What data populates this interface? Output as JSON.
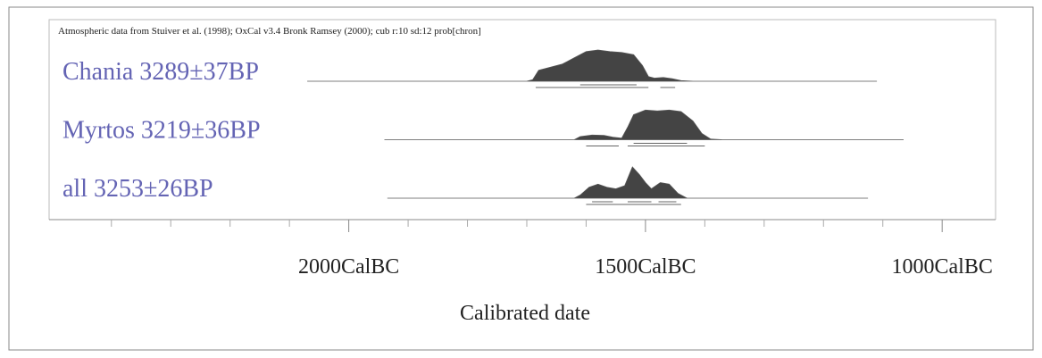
{
  "chart_data": {
    "type": "area",
    "title": "Atmospheric data from Stuiver et al. (1998); OxCal v3.4 Bronk Ramsey (2000); cub r:10 sd:12 prob[chron]",
    "x_label": "Calibrated date",
    "xlim": [
      2505,
      910
    ],
    "xticks": [
      {
        "value": 2000,
        "label": "2000CalBC"
      },
      {
        "value": 1500,
        "label": "1500CalBC"
      },
      {
        "value": 1000,
        "label": "1000CalBC"
      }
    ],
    "xminorticks": [
      2400,
      2300,
      2200,
      2100,
      1900,
      1800,
      1700,
      1600,
      1400,
      1300,
      1200,
      1100
    ],
    "color": "#444444",
    "series": [
      {
        "name": "Chania  3289±37BP",
        "x": [
          2070,
          1700,
          1690,
          1680,
          1660,
          1640,
          1620,
          1600,
          1580,
          1560,
          1540,
          1520,
          1505,
          1495,
          1485,
          1470,
          1455,
          1440,
          1420,
          1110
        ],
        "values": [
          0,
          0,
          0.05,
          0.35,
          0.45,
          0.55,
          0.75,
          0.95,
          1,
          0.95,
          0.92,
          0.85,
          0.5,
          0.15,
          0.1,
          0.12,
          0.08,
          0.02,
          0,
          0
        ],
        "ranges_68": [
          [
            1610,
            1515
          ]
        ],
        "ranges_95": [
          [
            1685,
            1495
          ],
          [
            1475,
            1450
          ]
        ]
      },
      {
        "name": "Myrtos  3219±36BP",
        "x": [
          1940,
          1620,
          1610,
          1590,
          1570,
          1555,
          1540,
          1530,
          1520,
          1500,
          1480,
          1460,
          1440,
          1420,
          1405,
          1390,
          1370,
          1065
        ],
        "values": [
          0,
          0,
          0.1,
          0.15,
          0.14,
          0.08,
          0.05,
          0.4,
          0.8,
          0.95,
          0.92,
          0.95,
          0.9,
          0.6,
          0.2,
          0.02,
          0,
          0
        ],
        "ranges_68": [
          [
            1520,
            1430
          ]
        ],
        "ranges_95": [
          [
            1600,
            1545
          ],
          [
            1530,
            1400
          ]
        ]
      },
      {
        "name": "all  3253±26BP",
        "x": [
          1935,
          1620,
          1610,
          1595,
          1580,
          1565,
          1550,
          1535,
          1522,
          1510,
          1500,
          1490,
          1475,
          1460,
          1445,
          1430,
          1125
        ],
        "values": [
          0,
          0,
          0.1,
          0.35,
          0.45,
          0.35,
          0.3,
          0.4,
          1,
          0.75,
          0.5,
          0.3,
          0.5,
          0.45,
          0.15,
          0,
          0
        ],
        "ranges_68": [
          [
            1590,
            1555
          ],
          [
            1530,
            1490
          ],
          [
            1478,
            1448
          ]
        ],
        "ranges_95": [
          [
            1600,
            1440
          ]
        ]
      }
    ]
  }
}
